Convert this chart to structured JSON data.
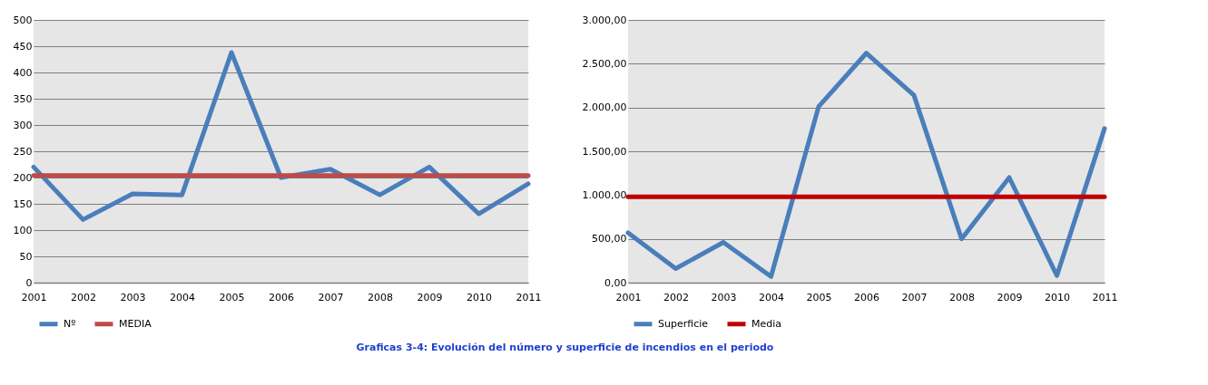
{
  "chart_data": [
    {
      "type": "line",
      "categories": [
        "2001",
        "2002",
        "2003",
        "2004",
        "2005",
        "2006",
        "2007",
        "2008",
        "2009",
        "2010",
        "2011"
      ],
      "series": [
        {
          "name": "Nº",
          "color": "#4a7ebb",
          "values": [
            220,
            120,
            169,
            167,
            438,
            200,
            216,
            167,
            220,
            131,
            188
          ]
        },
        {
          "name": "MEDIA",
          "color": "#be4b48",
          "values": [
            204,
            204,
            204,
            204,
            204,
            204,
            204,
            204,
            204,
            204,
            204
          ]
        }
      ],
      "ylim": [
        0,
        500
      ],
      "yticks": [
        0,
        50,
        100,
        150,
        200,
        250,
        300,
        350,
        400,
        450,
        500
      ],
      "grid": "y",
      "legend": "bottom",
      "annotations": [
        "Graficas 3-4: Evolución del número y superficie de incendios en el periodo"
      ]
    },
    {
      "type": "line",
      "categories": [
        "2001",
        "2002",
        "2003",
        "2004",
        "2005",
        "2006",
        "2007",
        "2008",
        "2009",
        "2010",
        "2011"
      ],
      "series": [
        {
          "name": "Superficie",
          "color": "#4a7ebb",
          "values": [
            570,
            160,
            460,
            70,
            2010,
            2620,
            2140,
            500,
            1200,
            80,
            1760
          ]
        },
        {
          "name": "Media",
          "color": "#c00000",
          "values": [
            980,
            980,
            980,
            980,
            980,
            980,
            980,
            980,
            980,
            980,
            980
          ]
        }
      ],
      "ylim": [
        0,
        3000
      ],
      "yticks": [
        {
          "value": 0,
          "label": "0,00"
        },
        {
          "value": 500,
          "label": "500,00"
        },
        {
          "value": 1000,
          "label": "1.000,00"
        },
        {
          "value": 1500,
          "label": "1.500,00"
        },
        {
          "value": 2000,
          "label": "2.000,00"
        },
        {
          "value": 2500,
          "label": "2.500,00"
        },
        {
          "value": 3000,
          "label": "3.000,00"
        }
      ],
      "grid": "y",
      "legend": "bottom"
    }
  ]
}
